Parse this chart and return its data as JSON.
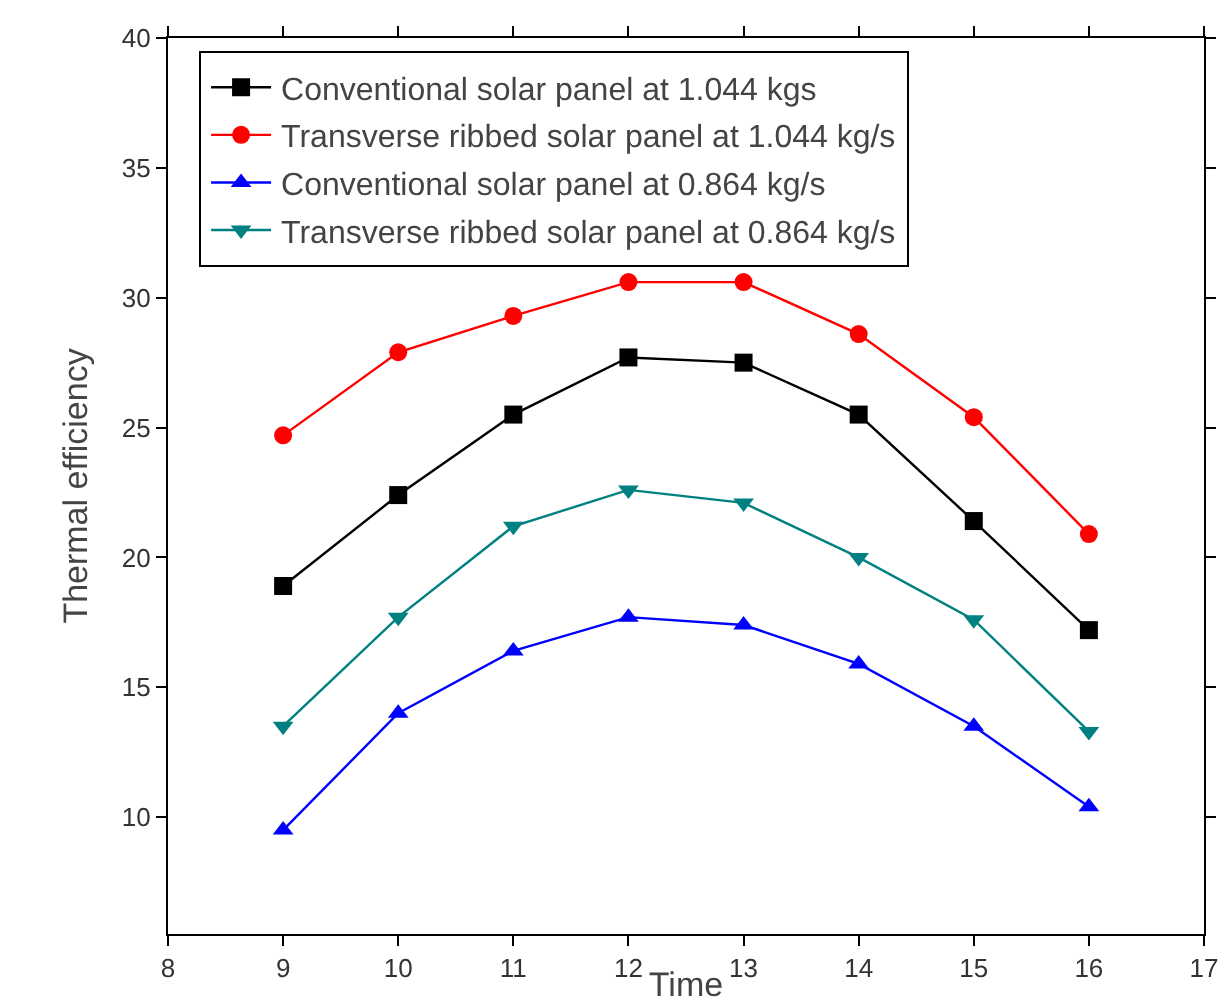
{
  "chart_data": {
    "type": "line",
    "xlabel": "Time",
    "ylabel": "Thermal efficiency",
    "x": [
      9,
      10,
      11,
      12,
      13,
      14,
      15,
      16
    ],
    "xlim": [
      8,
      17
    ],
    "xticks": [
      8,
      9,
      10,
      11,
      12,
      13,
      14,
      15,
      16,
      17
    ],
    "ylim": [
      5.5,
      40
    ],
    "yticks": [
      10,
      15,
      20,
      25,
      30,
      35,
      40
    ],
    "grid": false,
    "legend": "top left",
    "line_style": "solid",
    "series": [
      {
        "name": "Conventional solar panel at 1.044 kgs",
        "color": "#000000",
        "marker": "square",
        "values": [
          18.9,
          22.4,
          25.5,
          27.7,
          27.5,
          25.5,
          21.4,
          17.2
        ]
      },
      {
        "name": "Transverse ribbed solar panel at 1.044 kg/s",
        "color": "#ff0000",
        "marker": "circle",
        "values": [
          24.7,
          27.9,
          29.3,
          30.6,
          30.6,
          28.6,
          25.4,
          20.9
        ]
      },
      {
        "name": "Conventional solar panel at 0.864 kg/s",
        "color": "#0000ff",
        "marker": "triangle",
        "values": [
          9.5,
          14.0,
          16.4,
          17.7,
          17.4,
          15.9,
          13.5,
          10.4
        ]
      },
      {
        "name": "Transverse ribbed solar panel at 0.864 kg/s",
        "color": "#008080",
        "marker": "triangle-down",
        "values": [
          13.5,
          17.7,
          21.2,
          22.6,
          22.1,
          20.0,
          17.6,
          13.3
        ]
      }
    ]
  }
}
